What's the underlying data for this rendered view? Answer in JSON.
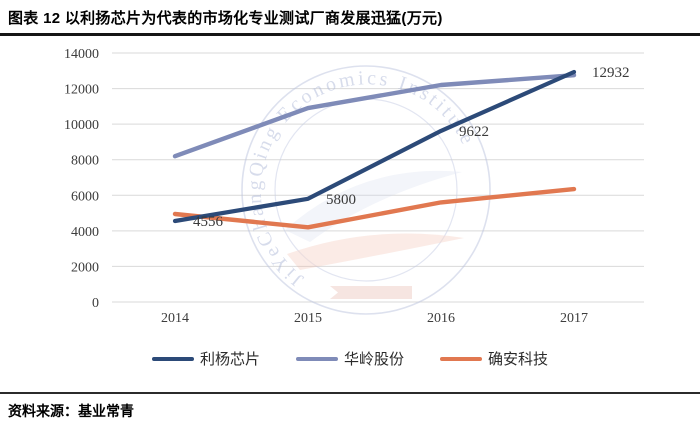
{
  "title": "图表 12 以利扬芯片为代表的市场化专业测试厂商发展迅猛(万元)",
  "source": "资料来源：基业常青",
  "watermark_text": "JiYeChangQing Economics Institute",
  "chart_data": {
    "type": "line",
    "title": "以利扬芯片为代表的市场化专业测试厂商发展迅猛",
    "unit": "万元",
    "categories": [
      "2014",
      "2015",
      "2016",
      "2017"
    ],
    "series": [
      {
        "name": "利杨芯片",
        "color": "#2c4a78",
        "values": [
          4556,
          5800,
          9622,
          12932
        ],
        "show_labels": true
      },
      {
        "name": "华岭股份",
        "color": "#7f8bb8",
        "values": [
          8200,
          10900,
          12200,
          12750
        ],
        "show_labels": false
      },
      {
        "name": "确安科技",
        "color": "#e17850",
        "values": [
          4950,
          4200,
          5600,
          6350
        ],
        "show_labels": false
      }
    ],
    "ylim": [
      0,
      14000
    ],
    "yticks": [
      0,
      2000,
      4000,
      6000,
      8000,
      10000,
      12000,
      14000
    ],
    "grid": true,
    "legend_position": "bottom",
    "xlabel": "",
    "ylabel": ""
  }
}
